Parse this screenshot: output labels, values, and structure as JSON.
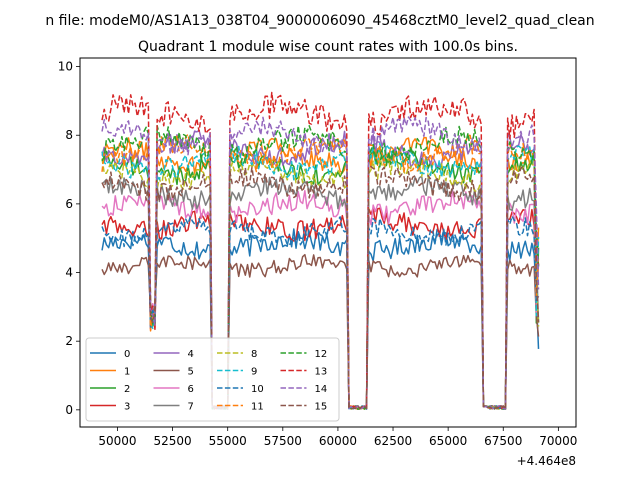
{
  "chart_data": {
    "type": "line",
    "suptitle": "n file: modeM0/AS1A13_038T04_9000006090_45468cztM0_level2_quad_clean",
    "title": "Quadrant 1 module wise count rates with 100.0s bins.",
    "xlabel": "",
    "ylabel": "",
    "x_offset_label": "+4.464e8",
    "xlim": [
      48300,
      70800
    ],
    "ylim": [
      -0.5,
      10.25
    ],
    "xticks": [
      50000,
      52500,
      55000,
      57500,
      60000,
      62500,
      65000,
      67500,
      70000
    ],
    "xtick_labels": [
      "50000",
      "52500",
      "55000",
      "57500",
      "60000",
      "62500",
      "65000",
      "67500",
      "70000"
    ],
    "yticks": [
      0,
      2,
      4,
      6,
      8,
      10
    ],
    "ytick_labels": [
      "0",
      "2",
      "4",
      "6",
      "8",
      "10"
    ],
    "x_start": 49300,
    "x_end": 69100,
    "bin": 100,
    "gaps": [
      {
        "x0": 51500,
        "x1": 51700,
        "type": "dip"
      },
      {
        "x0": 54300,
        "x1": 55000,
        "type": "zero"
      },
      {
        "x0": 60500,
        "x1": 61300,
        "type": "zero"
      },
      {
        "x0": 66600,
        "x1": 67600,
        "type": "zero"
      }
    ],
    "legend_position": "lower left",
    "legend_columns": 4,
    "series": [
      {
        "name": "0",
        "color": "#1f77b4",
        "dash": "solid",
        "mean": 4.8,
        "noise": 0.3
      },
      {
        "name": "1",
        "color": "#ff7f0e",
        "dash": "solid",
        "mean": 7.4,
        "noise": 0.3
      },
      {
        "name": "2",
        "color": "#2ca02c",
        "dash": "solid",
        "mean": 7.1,
        "noise": 0.3
      },
      {
        "name": "3",
        "color": "#d62728",
        "dash": "solid",
        "mean": 5.4,
        "noise": 0.3
      },
      {
        "name": "4",
        "color": "#9467bd",
        "dash": "solid",
        "mean": 7.6,
        "noise": 0.3
      },
      {
        "name": "5",
        "color": "#8c564b",
        "dash": "solid",
        "mean": 4.2,
        "noise": 0.22
      },
      {
        "name": "6",
        "color": "#e377c2",
        "dash": "solid",
        "mean": 5.9,
        "noise": 0.3
      },
      {
        "name": "7",
        "color": "#7f7f7f",
        "dash": "solid",
        "mean": 6.3,
        "noise": 0.3
      },
      {
        "name": "8",
        "color": "#bcbd22",
        "dash": "dashed",
        "mean": 6.9,
        "noise": 0.3
      },
      {
        "name": "9",
        "color": "#17becf",
        "dash": "dashed",
        "mean": 7.2,
        "noise": 0.3
      },
      {
        "name": "10",
        "color": "#1f77b4",
        "dash": "dashed",
        "mean": 5.2,
        "noise": 0.28
      },
      {
        "name": "11",
        "color": "#ff7f0e",
        "dash": "dashed",
        "mean": 7.5,
        "noise": 0.3
      },
      {
        "name": "12",
        "color": "#2ca02c",
        "dash": "dashed",
        "mean": 7.7,
        "noise": 0.35
      },
      {
        "name": "13",
        "color": "#d62728",
        "dash": "dashed",
        "mean": 8.6,
        "noise": 0.4
      },
      {
        "name": "14",
        "color": "#9467bd",
        "dash": "dashed",
        "mean": 8.0,
        "noise": 0.3
      },
      {
        "name": "15",
        "color": "#8c564b",
        "dash": "dashed",
        "mean": 6.6,
        "noise": 0.3
      }
    ]
  }
}
